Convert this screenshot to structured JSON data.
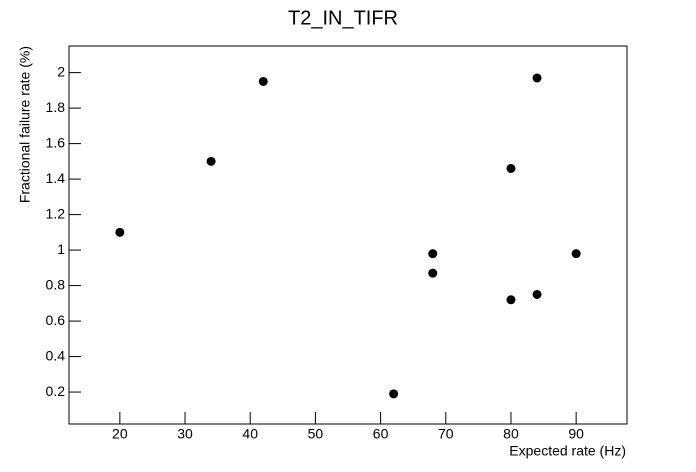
{
  "chart_data": {
    "type": "scatter",
    "title": "T2_IN_TIFR",
    "x_label": "Expected rate (Hz)",
    "y_label": "Fractional failure rate (%)",
    "color": "#000000",
    "x": [
      20,
      34,
      42,
      62,
      68,
      68,
      80,
      80,
      84,
      84,
      90
    ],
    "values": [
      1.1,
      1.5,
      1.95,
      0.19,
      0.98,
      0.87,
      1.46,
      0.72,
      1.97,
      0.75,
      0.98
    ],
    "xlim": [
      12.2,
      97.8
    ],
    "ylim": [
      0.02,
      2.15
    ],
    "xticks": [
      20,
      30,
      40,
      50,
      60,
      70,
      80,
      90
    ],
    "yticks": [
      0.2,
      0.4,
      0.6,
      0.8,
      1,
      1.2,
      1.4,
      1.6,
      1.8,
      2
    ],
    "grid": false
  }
}
